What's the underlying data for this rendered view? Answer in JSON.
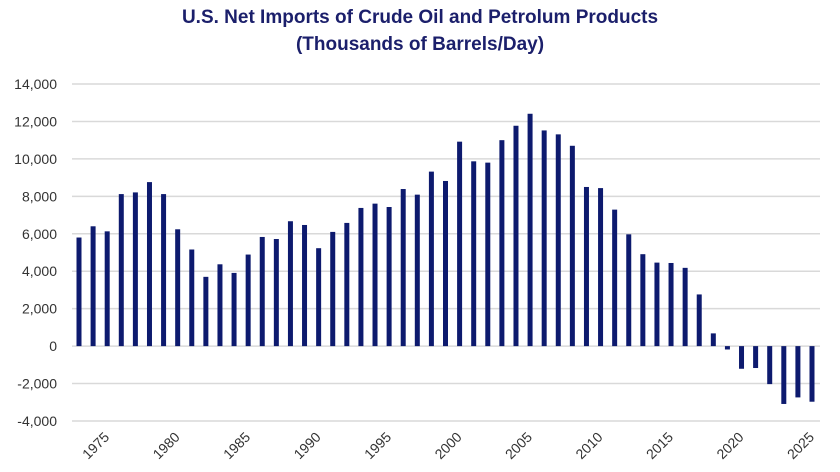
{
  "chart_data": {
    "type": "bar",
    "title": "U.S. Net Imports of Crude Oil and Petrolum Products",
    "subtitle": "(Thousands of Barrels/Day)",
    "xlabel": "",
    "ylabel": "",
    "ylim": [
      -4000,
      14000
    ],
    "yticks": [
      14000,
      12000,
      10000,
      8000,
      6000,
      4000,
      2000,
      0,
      -2000,
      -4000
    ],
    "ytick_labels": [
      "14,000",
      "12,000",
      "10,000",
      "8,000",
      "6,000",
      "4,000",
      "2,000",
      "0",
      "-2,000",
      "-4,000"
    ],
    "xtick_labels": [
      "1975",
      "1980",
      "1985",
      "1990",
      "1995",
      "2000",
      "2005",
      "2010",
      "2015",
      "2020",
      "2025"
    ],
    "grid": true,
    "legend": "none",
    "bar_color": "#0d1a6e",
    "categories": [
      1973,
      1974,
      1975,
      1976,
      1977,
      1978,
      1979,
      1980,
      1981,
      1982,
      1983,
      1984,
      1985,
      1986,
      1987,
      1988,
      1989,
      1990,
      1991,
      1992,
      1993,
      1994,
      1995,
      1996,
      1997,
      1998,
      1999,
      2000,
      2001,
      2002,
      2003,
      2004,
      2005,
      2006,
      2007,
      2008,
      2009,
      2010,
      2011,
      2012,
      2013,
      2014,
      2015,
      2016,
      2017,
      2018,
      2019,
      2020,
      2021,
      2022,
      2023,
      2024,
      2025
    ],
    "values": [
      5800,
      6400,
      6130,
      8120,
      8210,
      8760,
      8120,
      6240,
      5160,
      3700,
      4370,
      3910,
      4890,
      5830,
      5720,
      6670,
      6470,
      5230,
      6100,
      6580,
      7380,
      7610,
      7430,
      8390,
      8090,
      9320,
      8820,
      10920,
      9870,
      9800,
      11000,
      11770,
      12410,
      11520,
      11310,
      10700,
      8500,
      8440,
      7290,
      5970,
      4910,
      4460,
      4440,
      4180,
      2760,
      680,
      -180,
      -1210,
      -1170,
      -2030,
      -3090,
      -2740,
      -2970
    ]
  }
}
